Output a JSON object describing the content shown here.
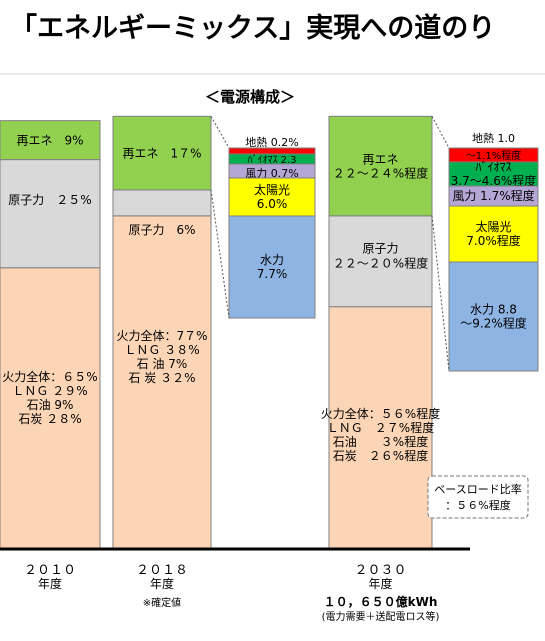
{
  "title": "「エネルギーミックス」実現への道のり",
  "subtitle": "＜電源構成＞",
  "note_2018": "※確定値",
  "baseload_note": [
    "ベースロード比率",
    "：５６%程度"
  ],
  "colors": {
    "renewable": "#92D050",
    "nuclear": "#D9D9D9",
    "thermal": "#FBD5B5",
    "geothermal": "#FF0000",
    "biomass": "#00B050",
    "wind": "#B4A7D6",
    "solar": "#FFFF00",
    "hydro": "#8EB4E3",
    "border": "#7F7F7F",
    "axis": "#000000"
  },
  "chart_data": {
    "type": "bar",
    "stacked": true,
    "categories": [
      {
        "label": "２０１０",
        "sub": "年度",
        "note": ""
      },
      {
        "label": "２０１８",
        "sub": "年度",
        "note": "※確定値"
      },
      {
        "label": "２０３０",
        "sub": "年度",
        "note": "１０，６５０億kWh",
        "note2": "(電力需要＋送配電ロス等)"
      }
    ],
    "series": [
      {
        "key": "thermal",
        "values": [
          65,
          77,
          56
        ]
      },
      {
        "key": "nuclear",
        "values": [
          25,
          6,
          21
        ]
      },
      {
        "key": "renewable",
        "values": [
          9,
          17,
          23
        ]
      }
    ],
    "bar_labels": [
      {
        "renewable": [
          "再エネ　9%"
        ],
        "nuclear": [
          "原子力　２５%"
        ],
        "thermal": [
          "火力全体：６５%",
          "ＬＮＧ ２９%",
          "石油 9%",
          "石炭 ２８%"
        ]
      },
      {
        "renewable": [
          "再エネ　1７%"
        ],
        "nuclear": [
          "原子力　6%"
        ],
        "thermal": [
          "火力全体：7７%",
          "ＬＮＧ ３８%",
          "石 油 7%",
          "石 炭 ３２%"
        ]
      },
      {
        "renewable": [
          "再エネ",
          "２２～２４%程度"
        ],
        "nuclear": [
          "原子力",
          "２２～２０%程度"
        ],
        "thermal": [
          "火力全体：５６%程度",
          "ＬＮＧ　２７%程度",
          "石油　　３%程度",
          "石炭　２６%程度"
        ]
      }
    ],
    "renewable_breakdown": [
      {
        "year": "２０１８",
        "items": [
          {
            "key": "geothermal",
            "value": 0.2,
            "labels": [
              "地熱 0.2%"
            ]
          },
          {
            "key": "biomass",
            "value": 2.3,
            "labels": [
              "ﾊﾞｲｵﾏｽ 2.3"
            ]
          },
          {
            "key": "wind",
            "value": 0.7,
            "labels": [
              "風力 0.7%"
            ]
          },
          {
            "key": "solar",
            "value": 6.0,
            "labels": [
              "太陽光",
              "6.0%"
            ]
          },
          {
            "key": "hydro",
            "value": 7.7,
            "labels": [
              "水力",
              "7.7%"
            ]
          }
        ]
      },
      {
        "year": "２０３０",
        "items": [
          {
            "key": "geothermal",
            "value": [
              1.0,
              1.1
            ],
            "labels": [
              "地熱 1.0",
              "～1.1%程度"
            ]
          },
          {
            "key": "biomass",
            "value": [
              3.7,
              4.6
            ],
            "labels": [
              "ﾊﾞｲｵﾏｽ",
              "3.7～4.6%程度"
            ]
          },
          {
            "key": "wind",
            "value": 1.7,
            "labels": [
              "風力 1.7%程度"
            ]
          },
          {
            "key": "solar",
            "value": 7.0,
            "labels": [
              "太陽光",
              "7.0%程度"
            ]
          },
          {
            "key": "hydro",
            "value": [
              8.8,
              9.2
            ],
            "labels": [
              "水力 8.8",
              "～9.2%程度"
            ]
          }
        ]
      }
    ]
  }
}
